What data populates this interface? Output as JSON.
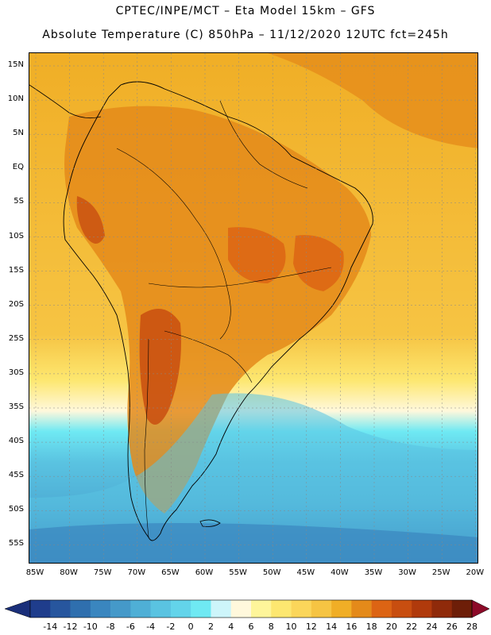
{
  "header": {
    "line1": "CPTEC/INPE/MCT –  Eta Model 15km – GFS",
    "line2": "Absolute Temperature (C) 850hPa – 11/12/2020 12UTC fct=245h"
  },
  "map": {
    "lat_labels": [
      "15N",
      "10N",
      "5N",
      "EQ",
      "5S",
      "10S",
      "15S",
      "20S",
      "25S",
      "30S",
      "35S",
      "40S",
      "45S",
      "50S",
      "55S"
    ],
    "lon_labels": [
      "85W",
      "80W",
      "75W",
      "70W",
      "65W",
      "60W",
      "55W",
      "50W",
      "45W",
      "40W",
      "35W",
      "30W",
      "25W",
      "20W"
    ]
  },
  "colorbar": {
    "labels": [
      "-14",
      "-12",
      "-10",
      "-8",
      "-6",
      "-4",
      "-2",
      "0",
      "2",
      "4",
      "6",
      "8",
      "10",
      "12",
      "14",
      "16",
      "18",
      "20",
      "22",
      "24",
      "26",
      "28"
    ],
    "colors": [
      "#1f3d8c",
      "#27569e",
      "#2f6fae",
      "#3a86bf",
      "#4599c9",
      "#4fafd6",
      "#5ac3e1",
      "#63d4ea",
      "#6fe9f3",
      "#cdf5fa",
      "#fff8dc",
      "#fef59a",
      "#fde770",
      "#fbd65a",
      "#f6c443",
      "#f0ae26",
      "#e48a1a",
      "#dc6414",
      "#c84e10",
      "#b03a0c",
      "#8f2a0a",
      "#6d1e08"
    ],
    "under_color": "#1a2f7a",
    "over_color": "#8c0a28"
  }
}
